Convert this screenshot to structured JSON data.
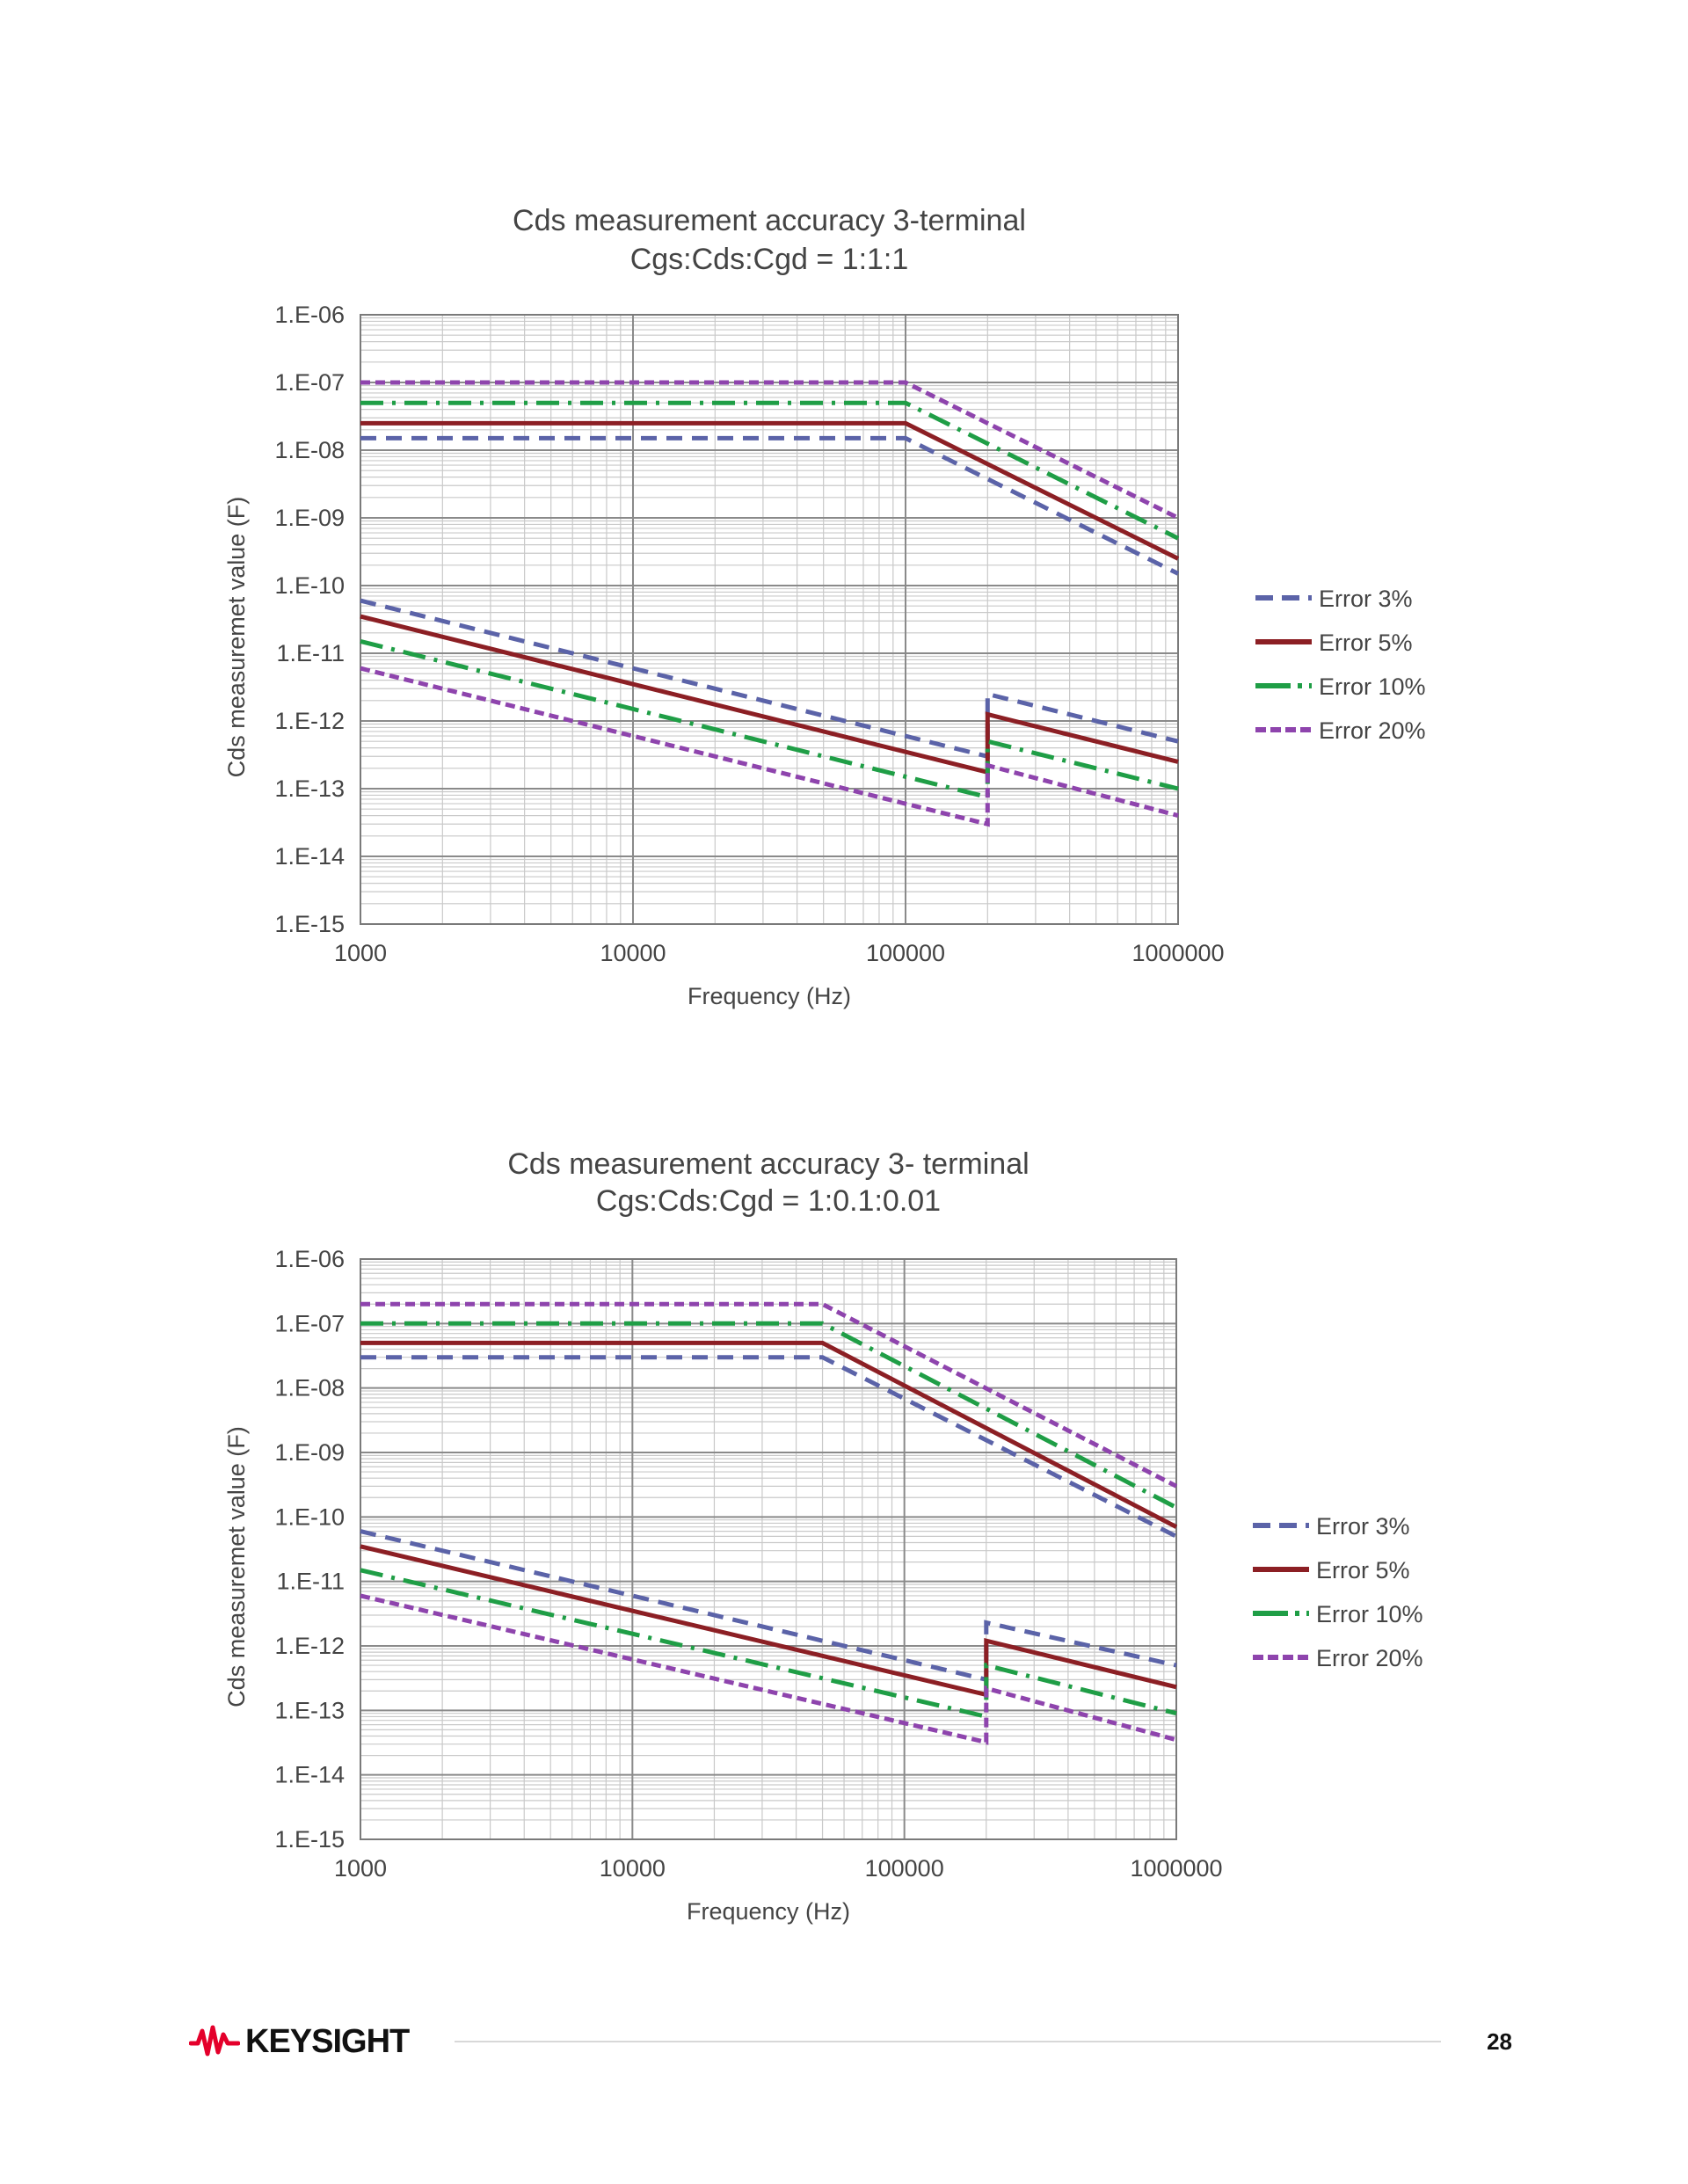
{
  "chart_data": [
    {
      "type": "line",
      "title": [
        "Cds measurement accuracy 3-terminal",
        "Cgs:Cds:Cgd = 1:1:1"
      ],
      "xlabel": "Frequency (Hz)",
      "ylabel": "Cds measuremet value (F)",
      "xscale": "log",
      "yscale": "log",
      "xlim": [
        1000,
        1000000
      ],
      "ylim": [
        1e-15,
        1e-06
      ],
      "x_tick_labels": [
        "1000",
        "10000",
        "100000",
        "1000000"
      ],
      "y_tick_labels": [
        "1.E-06",
        "1.E-07",
        "1.E-08",
        "1.E-09",
        "1.E-10",
        "1.E-11",
        "1.E-12",
        "1.E-13",
        "1.E-14",
        "1.E-15"
      ],
      "grid": true,
      "legend_position": "right",
      "series": [
        {
          "name": "Error 3%",
          "color": "#5b63a8",
          "style": "dashed",
          "upper": [
            [
              1000,
              1.5e-08
            ],
            [
              100000,
              1.5e-08
            ],
            [
              1000000,
              1.5e-10
            ]
          ],
          "lower": [
            [
              1000,
              6e-11
            ],
            [
              200000,
              3e-13
            ],
            [
              200000,
              2.5e-12
            ],
            [
              1000000,
              5e-13
            ]
          ]
        },
        {
          "name": "Error 5%",
          "color": "#8c1f24",
          "style": "solid",
          "upper": [
            [
              1000,
              2.5e-08
            ],
            [
              100000,
              2.5e-08
            ],
            [
              1000000,
              2.5e-10
            ]
          ],
          "lower": [
            [
              1000,
              3.5e-11
            ],
            [
              200000,
              1.75e-13
            ],
            [
              200000,
              1.25e-12
            ],
            [
              1000000,
              2.5e-13
            ]
          ]
        },
        {
          "name": "Error 10%",
          "color": "#1f9e46",
          "style": "dashdot",
          "upper": [
            [
              1000,
              5e-08
            ],
            [
              100000,
              5e-08
            ],
            [
              1000000,
              5e-10
            ]
          ],
          "lower": [
            [
              1000,
              1.5e-11
            ],
            [
              200000,
              7.5e-14
            ],
            [
              200000,
              5e-13
            ],
            [
              1000000,
              1e-13
            ]
          ]
        },
        {
          "name": "Error 20%",
          "color": "#8e44ad",
          "style": "dotted",
          "upper": [
            [
              1000,
              1e-07
            ],
            [
              100000,
              1e-07
            ],
            [
              1000000,
              1e-09
            ]
          ],
          "lower": [
            [
              1000,
              6e-12
            ],
            [
              200000,
              3e-14
            ],
            [
              200000,
              2.2e-13
            ],
            [
              1000000,
              4e-14
            ]
          ]
        }
      ]
    },
    {
      "type": "line",
      "title": [
        "Cds measurement accuracy 3- terminal",
        "Cgs:Cds:Cgd = 1:0.1:0.01"
      ],
      "xlabel": "Frequency (Hz)",
      "ylabel": "Cds measuremet value (F)",
      "xscale": "log",
      "yscale": "log",
      "xlim": [
        1000,
        1000000
      ],
      "ylim": [
        1e-15,
        1e-06
      ],
      "x_tick_labels": [
        "1000",
        "10000",
        "100000",
        "1000000"
      ],
      "y_tick_labels": [
        "1.E-06",
        "1.E-07",
        "1.E-08",
        "1.E-09",
        "1.E-10",
        "1.E-11",
        "1.E-12",
        "1.E-13",
        "1.E-14",
        "1.E-15"
      ],
      "grid": true,
      "legend_position": "right",
      "series": [
        {
          "name": "Error 3%",
          "color": "#5b63a8",
          "style": "dashed",
          "upper": [
            [
              1000,
              3e-08
            ],
            [
              50000,
              3e-08
            ],
            [
              1000000,
              5e-11
            ]
          ],
          "lower": [
            [
              1000,
              6e-11
            ],
            [
              200000,
              3e-13
            ],
            [
              200000,
              2.3e-12
            ],
            [
              1000000,
              5e-13
            ]
          ]
        },
        {
          "name": "Error 5%",
          "color": "#8c1f24",
          "style": "solid",
          "upper": [
            [
              1000,
              5e-08
            ],
            [
              50000,
              5e-08
            ],
            [
              1000000,
              7e-11
            ]
          ],
          "lower": [
            [
              1000,
              3.5e-11
            ],
            [
              200000,
              1.75e-13
            ],
            [
              200000,
              1.2e-12
            ],
            [
              1000000,
              2.3e-13
            ]
          ]
        },
        {
          "name": "Error 10%",
          "color": "#1f9e46",
          "style": "dashdot",
          "upper": [
            [
              1000,
              1e-07
            ],
            [
              50000,
              1e-07
            ],
            [
              1000000,
              1.4e-10
            ]
          ],
          "lower": [
            [
              1000,
              1.5e-11
            ],
            [
              200000,
              8e-14
            ],
            [
              200000,
              5e-13
            ],
            [
              1000000,
              9e-14
            ]
          ]
        },
        {
          "name": "Error 20%",
          "color": "#8e44ad",
          "style": "dotted",
          "upper": [
            [
              1000,
              2e-07
            ],
            [
              50000,
              2e-07
            ],
            [
              1000000,
              3e-10
            ]
          ],
          "lower": [
            [
              1000,
              6e-12
            ],
            [
              200000,
              3.2e-14
            ],
            [
              200000,
              2.2e-13
            ],
            [
              1000000,
              3.5e-14
            ]
          ]
        }
      ]
    }
  ],
  "footer": {
    "brand": "KEYSIGHT",
    "page_number": "28"
  }
}
